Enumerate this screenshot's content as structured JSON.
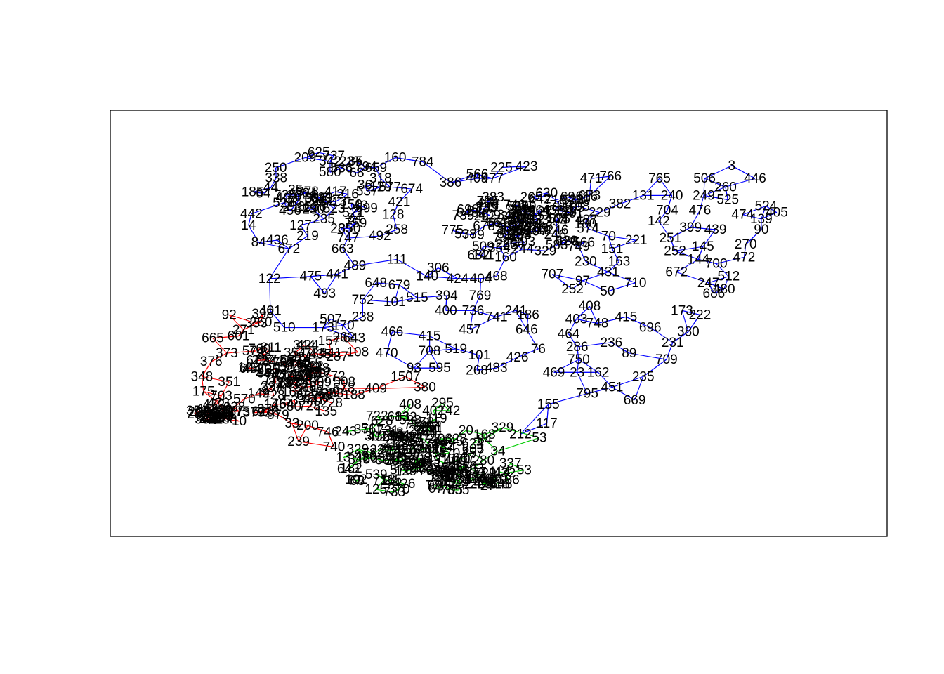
{
  "chart_data": {
    "type": "scatter",
    "title": "",
    "xlabel": "",
    "ylabel": "",
    "xlim": [
      0,
      1
    ],
    "ylim": [
      0,
      1
    ],
    "axes": "box only, no ticks",
    "grid": false,
    "legend": "none",
    "edge_colors": {
      "cluster_a": "#0000FF",
      "cluster_b": "#FF0000",
      "cluster_c": "#00CD00"
    },
    "nodes": [
      {
        "label": "3",
        "x": 0.8,
        "y": 0.87,
        "c": "a"
      },
      {
        "label": "446",
        "x": 0.83,
        "y": 0.84,
        "c": "a"
      },
      {
        "label": "506",
        "x": 0.765,
        "y": 0.84,
        "c": "a"
      },
      {
        "label": "765",
        "x": 0.707,
        "y": 0.84,
        "c": "a"
      },
      {
        "label": "766",
        "x": 0.644,
        "y": 0.845,
        "c": "a"
      },
      {
        "label": "240",
        "x": 0.723,
        "y": 0.8,
        "c": "a"
      },
      {
        "label": "249",
        "x": 0.764,
        "y": 0.8,
        "c": "a"
      },
      {
        "label": "260",
        "x": 0.792,
        "y": 0.82,
        "c": "a"
      },
      {
        "label": "525",
        "x": 0.795,
        "y": 0.79,
        "c": "a"
      },
      {
        "label": "131",
        "x": 0.686,
        "y": 0.8,
        "c": "a"
      },
      {
        "label": "704",
        "x": 0.717,
        "y": 0.765,
        "c": "a"
      },
      {
        "label": "476",
        "x": 0.759,
        "y": 0.765,
        "c": "a"
      },
      {
        "label": "524",
        "x": 0.844,
        "y": 0.775,
        "c": "a"
      },
      {
        "label": "405",
        "x": 0.858,
        "y": 0.76,
        "c": "a"
      },
      {
        "label": "139",
        "x": 0.838,
        "y": 0.745,
        "c": "a"
      },
      {
        "label": "90",
        "x": 0.838,
        "y": 0.72,
        "c": "a"
      },
      {
        "label": "474",
        "x": 0.814,
        "y": 0.755,
        "c": "a"
      },
      {
        "label": "439",
        "x": 0.779,
        "y": 0.72,
        "c": "a"
      },
      {
        "label": "142",
        "x": 0.706,
        "y": 0.74,
        "c": "a"
      },
      {
        "label": "251",
        "x": 0.721,
        "y": 0.7,
        "c": "a"
      },
      {
        "label": "399",
        "x": 0.747,
        "y": 0.725,
        "c": "a"
      },
      {
        "label": "270",
        "x": 0.818,
        "y": 0.685,
        "c": "a"
      },
      {
        "label": "145",
        "x": 0.763,
        "y": 0.68,
        "c": "a"
      },
      {
        "label": "472",
        "x": 0.816,
        "y": 0.655,
        "c": "a"
      },
      {
        "label": "480",
        "x": 0.79,
        "y": 0.58,
        "c": "a"
      },
      {
        "label": "512",
        "x": 0.796,
        "y": 0.61,
        "c": "a"
      },
      {
        "label": "221",
        "x": 0.677,
        "y": 0.695,
        "c": "a"
      },
      {
        "label": "382",
        "x": 0.656,
        "y": 0.78,
        "c": "a"
      },
      {
        "label": "229",
        "x": 0.63,
        "y": 0.76,
        "c": "a"
      },
      {
        "label": "151",
        "x": 0.646,
        "y": 0.675,
        "c": "a"
      },
      {
        "label": "230",
        "x": 0.612,
        "y": 0.645,
        "c": "a"
      },
      {
        "label": "431",
        "x": 0.641,
        "y": 0.62,
        "c": "a"
      },
      {
        "label": "50",
        "x": 0.64,
        "y": 0.575,
        "c": "a"
      },
      {
        "label": "97",
        "x": 0.608,
        "y": 0.6,
        "c": "a"
      },
      {
        "label": "707",
        "x": 0.569,
        "y": 0.615,
        "c": "a"
      },
      {
        "label": "415",
        "x": 0.664,
        "y": 0.515,
        "c": "a"
      },
      {
        "label": "236",
        "x": 0.645,
        "y": 0.455,
        "c": "a"
      },
      {
        "label": "89",
        "x": 0.668,
        "y": 0.43,
        "c": "a"
      },
      {
        "label": "709",
        "x": 0.716,
        "y": 0.415,
        "c": "a"
      },
      {
        "label": "231",
        "x": 0.724,
        "y": 0.455,
        "c": "a"
      },
      {
        "label": "380",
        "x": 0.744,
        "y": 0.48,
        "c": "a"
      },
      {
        "label": "222",
        "x": 0.759,
        "y": 0.52,
        "c": "a"
      },
      {
        "label": "235",
        "x": 0.686,
        "y": 0.375,
        "c": "a"
      },
      {
        "label": "451",
        "x": 0.646,
        "y": 0.35,
        "c": "a"
      },
      {
        "label": "669",
        "x": 0.675,
        "y": 0.32,
        "c": "a"
      },
      {
        "label": "162",
        "x": 0.628,
        "y": 0.385,
        "c": "a"
      },
      {
        "label": "750",
        "x": 0.603,
        "y": 0.415,
        "c": "a"
      },
      {
        "label": "286",
        "x": 0.601,
        "y": 0.445,
        "c": "a"
      },
      {
        "label": "748",
        "x": 0.627,
        "y": 0.5,
        "c": "a"
      },
      {
        "label": "408",
        "x": 0.617,
        "y": 0.54,
        "c": "a"
      },
      {
        "label": "252",
        "x": 0.595,
        "y": 0.58,
        "c": "a"
      },
      {
        "label": "469",
        "x": 0.571,
        "y": 0.385,
        "c": "a"
      },
      {
        "label": "23",
        "x": 0.601,
        "y": 0.385,
        "c": "a"
      },
      {
        "label": "795",
        "x": 0.614,
        "y": 0.335,
        "c": "a"
      },
      {
        "label": "155",
        "x": 0.564,
        "y": 0.31,
        "c": "a"
      },
      {
        "label": "117",
        "x": 0.562,
        "y": 0.265,
        "c": "a"
      },
      {
        "label": "212",
        "x": 0.528,
        "y": 0.24,
        "c": "a"
      },
      {
        "label": "76",
        "x": 0.551,
        "y": 0.44,
        "c": "a"
      },
      {
        "label": "519",
        "x": 0.445,
        "y": 0.44,
        "c": "a"
      },
      {
        "label": "708",
        "x": 0.411,
        "y": 0.435,
        "c": "a"
      },
      {
        "label": "595",
        "x": 0.424,
        "y": 0.395,
        "c": "a"
      },
      {
        "label": "93",
        "x": 0.391,
        "y": 0.395,
        "c": "a"
      },
      {
        "label": "415b",
        "label_text": "415",
        "x": 0.411,
        "y": 0.47,
        "c": "a"
      },
      {
        "label": "394",
        "x": 0.433,
        "y": 0.565,
        "c": "a"
      },
      {
        "label": "769",
        "x": 0.476,
        "y": 0.565,
        "c": "a"
      },
      {
        "label": "468",
        "x": 0.497,
        "y": 0.61,
        "c": "a"
      },
      {
        "label": "404",
        "x": 0.477,
        "y": 0.605,
        "c": "a"
      },
      {
        "label": "424",
        "x": 0.447,
        "y": 0.605,
        "c": "a"
      },
      {
        "label": "140",
        "x": 0.408,
        "y": 0.61,
        "c": "a"
      },
      {
        "label": "306",
        "x": 0.422,
        "y": 0.63,
        "c": "a"
      },
      {
        "label": "515",
        "x": 0.395,
        "y": 0.56,
        "c": "a"
      },
      {
        "label": "679",
        "x": 0.372,
        "y": 0.59,
        "c": "a"
      },
      {
        "label": "648",
        "x": 0.342,
        "y": 0.595,
        "c": "a"
      },
      {
        "label": "752",
        "x": 0.325,
        "y": 0.555,
        "c": "a"
      },
      {
        "label": "101",
        "x": 0.366,
        "y": 0.55,
        "c": "a"
      },
      {
        "label": "401",
        "x": 0.206,
        "y": 0.53,
        "c": "a"
      },
      {
        "label": "643",
        "x": 0.314,
        "y": 0.465,
        "c": "a"
      },
      {
        "label": "493",
        "x": 0.276,
        "y": 0.57,
        "c": "a"
      },
      {
        "label": "441",
        "x": 0.292,
        "y": 0.615,
        "c": "a"
      },
      {
        "label": "489",
        "x": 0.315,
        "y": 0.635,
        "c": "a"
      },
      {
        "label": "475",
        "x": 0.258,
        "y": 0.61,
        "c": "a"
      },
      {
        "label": "111",
        "x": 0.369,
        "y": 0.65,
        "c": "a"
      },
      {
        "label": "122",
        "x": 0.205,
        "y": 0.605,
        "c": "a"
      },
      {
        "label": "84",
        "x": 0.191,
        "y": 0.69,
        "c": "a"
      },
      {
        "label": "436",
        "x": 0.215,
        "y": 0.695,
        "c": "a"
      },
      {
        "label": "672",
        "x": 0.23,
        "y": 0.675,
        "c": "a"
      },
      {
        "label": "663",
        "x": 0.299,
        "y": 0.675,
        "c": "a"
      },
      {
        "label": "747",
        "x": 0.306,
        "y": 0.7,
        "c": "a"
      },
      {
        "label": "219",
        "x": 0.254,
        "y": 0.705,
        "c": "a"
      },
      {
        "label": "492",
        "x": 0.347,
        "y": 0.705,
        "c": "a"
      },
      {
        "label": "759",
        "x": 0.316,
        "y": 0.735,
        "c": "a"
      },
      {
        "label": "127",
        "x": 0.245,
        "y": 0.73,
        "c": "a"
      },
      {
        "label": "235b",
        "label_text": "235",
        "x": 0.275,
        "y": 0.745,
        "c": "a"
      },
      {
        "label": "699",
        "x": 0.33,
        "y": 0.77,
        "c": "a"
      },
      {
        "label": "713",
        "x": 0.29,
        "y": 0.785,
        "c": "a"
      },
      {
        "label": "128",
        "x": 0.364,
        "y": 0.755,
        "c": "a"
      },
      {
        "label": "258",
        "x": 0.369,
        "y": 0.72,
        "c": "a"
      },
      {
        "label": "659",
        "x": 0.342,
        "y": 0.865,
        "c": "a"
      },
      {
        "label": "318",
        "x": 0.348,
        "y": 0.84,
        "c": "a"
      },
      {
        "label": "237",
        "x": 0.309,
        "y": 0.88,
        "c": "a"
      },
      {
        "label": "342",
        "x": 0.283,
        "y": 0.88,
        "c": "a"
      },
      {
        "label": "250",
        "x": 0.213,
        "y": 0.865,
        "c": "a"
      },
      {
        "label": "64",
        "x": 0.197,
        "y": 0.805,
        "c": "a"
      },
      {
        "label": "14",
        "x": 0.178,
        "y": 0.73,
        "c": "a"
      },
      {
        "label": "577",
        "x": 0.36,
        "y": 0.82,
        "c": "a"
      },
      {
        "label": "421",
        "x": 0.372,
        "y": 0.785,
        "c": "a"
      },
      {
        "label": "141",
        "x": 0.48,
        "y": 0.66,
        "c": "a"
      },
      {
        "label": "160",
        "x": 0.509,
        "y": 0.655,
        "c": "a"
      },
      {
        "label": "329",
        "x": 0.56,
        "y": 0.67,
        "c": "a"
      },
      {
        "label": "741",
        "x": 0.497,
        "y": 0.515,
        "c": "a"
      },
      {
        "label": "646",
        "x": 0.536,
        "y": 0.485,
        "c": "a"
      },
      {
        "label": "464",
        "x": 0.59,
        "y": 0.475,
        "c": "a"
      },
      {
        "label": "186",
        "x": 0.538,
        "y": 0.52,
        "c": "a"
      },
      {
        "label": "403",
        "x": 0.6,
        "y": 0.51,
        "c": "a"
      },
      {
        "label": "710",
        "x": 0.676,
        "y": 0.595,
        "c": "a"
      },
      {
        "label": "686",
        "x": 0.777,
        "y": 0.57,
        "c": "a"
      },
      {
        "label": "247",
        "x": 0.77,
        "y": 0.595,
        "c": "a"
      },
      {
        "label": "672b",
        "label_text": "672",
        "x": 0.729,
        "y": 0.62,
        "c": "a"
      },
      {
        "label": "144",
        "x": 0.757,
        "y": 0.65,
        "c": "a"
      },
      {
        "label": "252b",
        "label_text": "252",
        "x": 0.727,
        "y": 0.67,
        "c": "a"
      },
      {
        "label": "163",
        "x": 0.655,
        "y": 0.645,
        "c": "a"
      },
      {
        "label": "700",
        "x": 0.78,
        "y": 0.64,
        "c": "a"
      },
      {
        "label": "173",
        "x": 0.736,
        "y": 0.53,
        "c": "a"
      },
      {
        "label": "696",
        "x": 0.695,
        "y": 0.49,
        "c": "a"
      },
      {
        "label": "471",
        "x": 0.619,
        "y": 0.84,
        "c": "a"
      },
      {
        "label": "673",
        "x": 0.617,
        "y": 0.8,
        "c": "a"
      },
      {
        "label": "749",
        "x": 0.603,
        "y": 0.68,
        "c": "a"
      },
      {
        "label": "409",
        "x": 0.472,
        "y": 0.84,
        "c": "a"
      },
      {
        "label": "477",
        "x": 0.492,
        "y": 0.84,
        "c": "a"
      },
      {
        "label": "386",
        "x": 0.438,
        "y": 0.83,
        "c": "a"
      },
      {
        "label": "509",
        "x": 0.48,
        "y": 0.68,
        "c": "a"
      },
      {
        "label": "682",
        "x": 0.474,
        "y": 0.66,
        "c": "a"
      },
      {
        "label": "507",
        "x": 0.284,
        "y": 0.51,
        "c": "a"
      },
      {
        "label": "170",
        "x": 0.3,
        "y": 0.495,
        "c": "a"
      },
      {
        "label": "238",
        "x": 0.325,
        "y": 0.515,
        "c": "a"
      },
      {
        "label": "510",
        "x": 0.224,
        "y": 0.49,
        "c": "a"
      },
      {
        "label": "173b",
        "label_text": "173",
        "x": 0.274,
        "y": 0.49,
        "c": "a"
      },
      {
        "label": "470",
        "x": 0.356,
        "y": 0.43,
        "c": "a"
      },
      {
        "label": "466",
        "x": 0.363,
        "y": 0.48,
        "c": "a"
      },
      {
        "label": "400",
        "x": 0.432,
        "y": 0.53,
        "c": "a"
      },
      {
        "label": "736",
        "x": 0.467,
        "y": 0.53,
        "c": "a"
      },
      {
        "label": "241",
        "x": 0.522,
        "y": 0.53,
        "c": "a"
      },
      {
        "label": "457",
        "x": 0.463,
        "y": 0.485,
        "c": "a"
      },
      {
        "label": "101b",
        "label_text": "101",
        "x": 0.475,
        "y": 0.425,
        "c": "a"
      },
      {
        "label": "426",
        "x": 0.524,
        "y": 0.42,
        "c": "a"
      },
      {
        "label": "268",
        "x": 0.472,
        "y": 0.39,
        "c": "a"
      },
      {
        "label": "483",
        "x": 0.497,
        "y": 0.395,
        "c": "a"
      },
      {
        "label": "92",
        "x": 0.153,
        "y": 0.52,
        "c": "b"
      },
      {
        "label": "353",
        "x": 0.188,
        "y": 0.5,
        "c": "b"
      },
      {
        "label": "665",
        "x": 0.132,
        "y": 0.465,
        "c": "b"
      },
      {
        "label": "601",
        "x": 0.165,
        "y": 0.47,
        "c": "b"
      },
      {
        "label": "373",
        "x": 0.15,
        "y": 0.43,
        "c": "b"
      },
      {
        "label": "376",
        "x": 0.13,
        "y": 0.41,
        "c": "b"
      },
      {
        "label": "348",
        "x": 0.118,
        "y": 0.375,
        "c": "b"
      },
      {
        "label": "175",
        "x": 0.12,
        "y": 0.34,
        "c": "b"
      },
      {
        "label": "351",
        "x": 0.112,
        "y": 0.295,
        "c": "b"
      },
      {
        "label": "82",
        "x": 0.12,
        "y": 0.28,
        "c": "b"
      },
      {
        "label": "760",
        "x": 0.192,
        "y": 0.44,
        "c": "b"
      },
      {
        "label": "579",
        "x": 0.216,
        "y": 0.285,
        "c": "b"
      },
      {
        "label": "33",
        "x": 0.234,
        "y": 0.265,
        "c": "b"
      },
      {
        "label": "200",
        "x": 0.254,
        "y": 0.26,
        "c": "b"
      },
      {
        "label": "746",
        "x": 0.28,
        "y": 0.245,
        "c": "b"
      },
      {
        "label": "740",
        "x": 0.288,
        "y": 0.21,
        "c": "b"
      },
      {
        "label": "289",
        "x": 0.268,
        "y": 0.325,
        "c": "b"
      },
      {
        "label": "145b",
        "label_text": "145",
        "x": 0.212,
        "y": 0.31,
        "c": "b"
      },
      {
        "label": "1507",
        "x": 0.38,
        "y": 0.375,
        "c": "b"
      },
      {
        "label": "380b",
        "label_text": "380",
        "x": 0.405,
        "y": 0.35,
        "c": "b"
      },
      {
        "label": "125",
        "x": 0.342,
        "y": 0.11,
        "c": "c"
      },
      {
        "label": "68",
        "x": 0.318,
        "y": 0.13,
        "c": "c"
      },
      {
        "label": "182",
        "x": 0.31,
        "y": 0.16,
        "c": "c"
      },
      {
        "label": "13",
        "x": 0.3,
        "y": 0.185,
        "c": "c"
      },
      {
        "label": "34",
        "x": 0.499,
        "y": 0.2,
        "c": "c"
      },
      {
        "label": "603",
        "x": 0.467,
        "y": 0.205,
        "c": "c"
      },
      {
        "label": "329b",
        "label_text": "329",
        "x": 0.505,
        "y": 0.255,
        "c": "c"
      },
      {
        "label": "402",
        "x": 0.416,
        "y": 0.295,
        "c": "c"
      },
      {
        "label": "24",
        "x": 0.36,
        "y": 0.13,
        "c": "c"
      },
      {
        "label": "640",
        "x": 0.496,
        "y": 0.135,
        "c": "c"
      }
    ],
    "clusters": [
      {
        "id": "a",
        "color": "#0000FF",
        "center": [
          0.54,
          0.74
        ],
        "spread": [
          0.05,
          0.04
        ],
        "dense_count": 90
      },
      {
        "id": "a2",
        "color": "#0000FF",
        "center": [
          0.27,
          0.8
        ],
        "spread": [
          0.05,
          0.04
        ],
        "dense_count": 45
      },
      {
        "id": "b",
        "color": "#FF0000",
        "center": [
          0.24,
          0.38
        ],
        "spread": [
          0.04,
          0.05
        ],
        "dense_count": 90
      },
      {
        "id": "b2",
        "color": "#FF0000",
        "center": [
          0.14,
          0.29
        ],
        "spread": [
          0.015,
          0.012
        ],
        "dense_count": 30
      },
      {
        "id": "c",
        "color": "#00CD00",
        "center": [
          0.4,
          0.22
        ],
        "spread": [
          0.04,
          0.04
        ],
        "dense_count": 90
      },
      {
        "id": "c2",
        "color": "#00CD00",
        "center": [
          0.45,
          0.14
        ],
        "spread": [
          0.04,
          0.02
        ],
        "dense_count": 55
      }
    ]
  }
}
